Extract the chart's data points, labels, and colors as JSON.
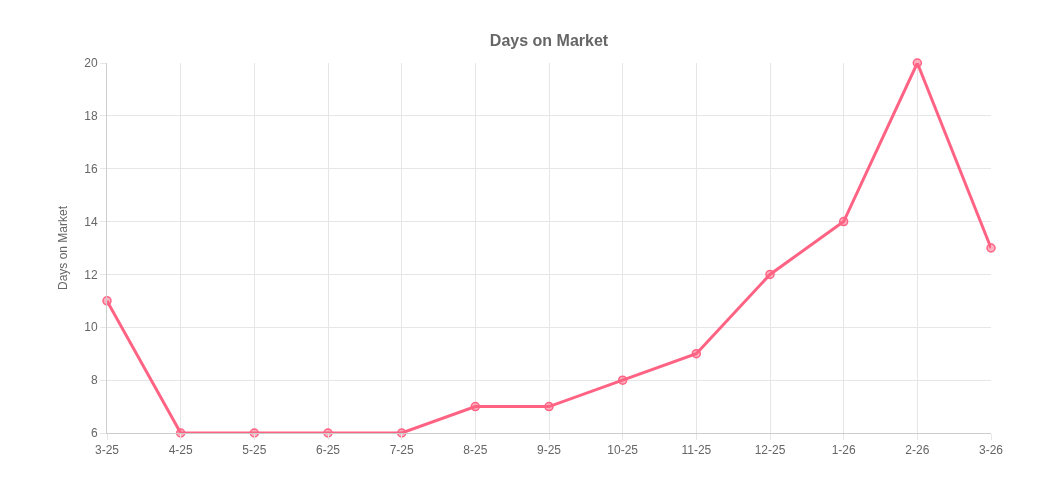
{
  "chart_data": {
    "type": "line",
    "title": "Days on Market",
    "ylabel": "Days on Market",
    "categories": [
      "3-25",
      "4-25",
      "5-25",
      "6-25",
      "7-25",
      "8-25",
      "9-25",
      "10-25",
      "11-25",
      "12-25",
      "1-26",
      "2-26",
      "3-26"
    ],
    "series": [
      {
        "color": "#ff6384",
        "values": [
          11,
          6,
          6,
          6,
          6,
          7,
          7,
          8,
          9,
          12,
          14,
          20,
          13
        ]
      }
    ],
    "ylim": [
      6,
      20
    ],
    "yticks": [
      6,
      8,
      10,
      12,
      14,
      16,
      18,
      20
    ],
    "grid": true,
    "marker": "circle",
    "line_style": "solid"
  }
}
